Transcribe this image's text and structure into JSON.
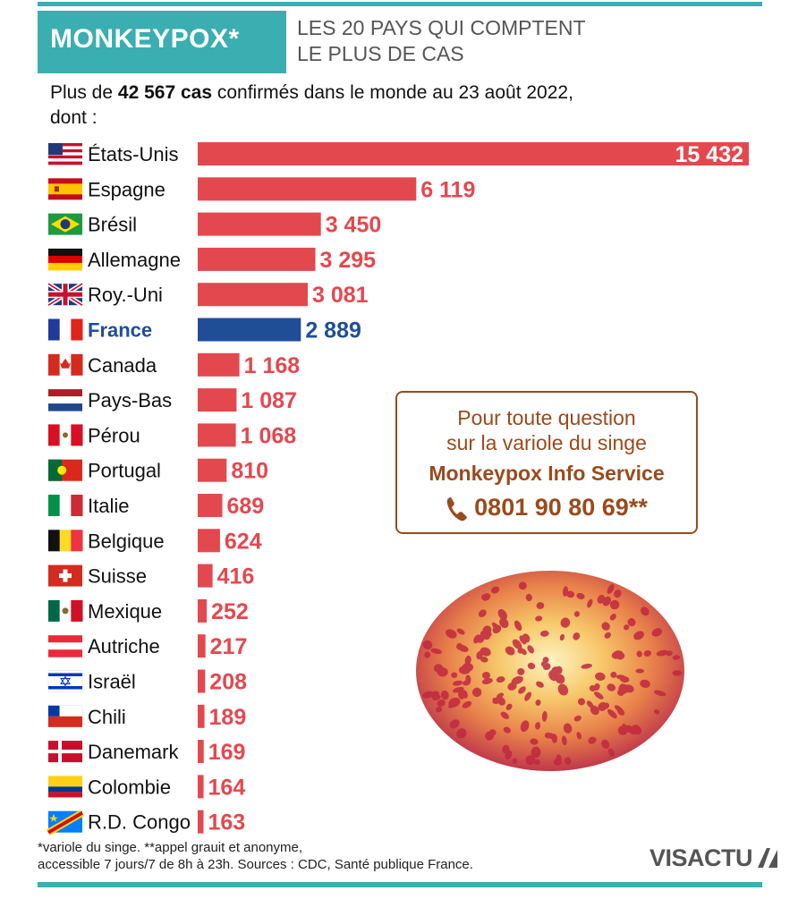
{
  "header": {
    "tag": "MONKEYPOX*",
    "subtitle_line1": "LES 20 PAYS QUI COMPTENT",
    "subtitle_line2": "LE PLUS DE CAS"
  },
  "intro": {
    "prefix": "Plus de ",
    "total": "42 567 cas",
    "suffix": " confirmés dans le monde au 23 août 2022,",
    "line2": "dont :"
  },
  "chart_data": {
    "type": "bar",
    "orientation": "horizontal",
    "title": "Les 20 pays qui comptent le plus de cas",
    "categories": [
      "États-Unis",
      "Espagne",
      "Brésil",
      "Allemagne",
      "Roy.-Uni",
      "France",
      "Canada",
      "Pays-Bas",
      "Pérou",
      "Portugal",
      "Italie",
      "Belgique",
      "Suisse",
      "Mexique",
      "Autriche",
      "Israël",
      "Chili",
      "Danemark",
      "Colombie",
      "R.D. Congo"
    ],
    "values": [
      15432,
      6119,
      3450,
      3295,
      3081,
      2889,
      1168,
      1087,
      1068,
      810,
      689,
      624,
      416,
      252,
      217,
      208,
      189,
      169,
      164,
      163
    ],
    "labels": [
      "15 432",
      "6 119",
      "3 450",
      "3 295",
      "3 081",
      "2 889",
      "1 168",
      "1 087",
      "1 068",
      "810",
      "689",
      "624",
      "416",
      "252",
      "217",
      "208",
      "189",
      "169",
      "164",
      "163"
    ],
    "highlight": "France",
    "xlim": [
      0,
      15432
    ]
  },
  "colors": {
    "accent": "#3aaeb0",
    "bar": "#e4484f",
    "highlight": "#1f4e97",
    "info": "#9b4a1c"
  },
  "info_box": {
    "line1": "Pour toute question",
    "line2": "sur la variole du singe",
    "service": "Monkeypox Info Service",
    "phone": "0801 90 80 69",
    "phone_suffix": "**",
    "icon": "phone-icon"
  },
  "footnote": {
    "line1": "*variole du singe.  **appel grauit et anonyme,",
    "line2": "accessible 7 jours/7 de 8h à 23h.  Sources : CDC, Santé publique France."
  },
  "logo": "VISACTU"
}
